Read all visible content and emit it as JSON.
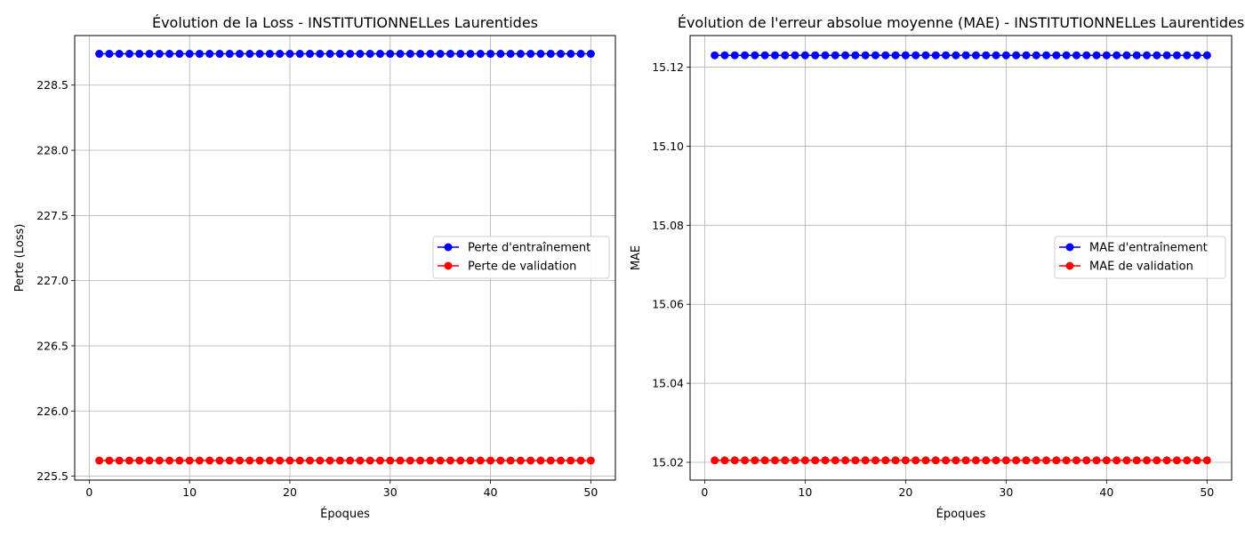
{
  "chart_data": [
    {
      "type": "line",
      "title": "Évolution de la Loss - INSTITUTIONNELLes Laurentides",
      "xlabel": "Époques",
      "ylabel": "Perte (Loss)",
      "xlim": [
        -1.45,
        52.45
      ],
      "ylim": [
        225.47,
        228.88
      ],
      "xticks": [
        0,
        10,
        20,
        30,
        40,
        50
      ],
      "yticks": [
        225.5,
        226.0,
        226.5,
        227.0,
        227.5,
        228.0,
        228.5
      ],
      "ytick_decimals": 1,
      "grid": true,
      "legend_position": "center-right",
      "epochs": [
        1,
        50
      ],
      "series": [
        {
          "name": "Perte d'entraînement",
          "color": "#0000ff",
          "value": 228.74
        },
        {
          "name": "Perte de validation",
          "color": "#ff0000",
          "value": 225.62
        }
      ]
    },
    {
      "type": "line",
      "title": "Évolution de l'erreur absolue moyenne (MAE) - INSTITUTIONNELLes Laurentides",
      "xlabel": "Époques",
      "ylabel": "MAE",
      "xlim": [
        -1.45,
        52.45
      ],
      "ylim": [
        15.0155,
        15.128
      ],
      "xticks": [
        0,
        10,
        20,
        30,
        40,
        50
      ],
      "yticks": [
        15.02,
        15.04,
        15.06,
        15.08,
        15.1,
        15.12
      ],
      "ytick_decimals": 2,
      "grid": true,
      "legend_position": "center-right",
      "epochs": [
        1,
        50
      ],
      "series": [
        {
          "name": "MAE d'entraînement",
          "color": "#0000ff",
          "value": 15.123
        },
        {
          "name": "MAE de validation",
          "color": "#ff0000",
          "value": 15.0205
        }
      ]
    }
  ]
}
